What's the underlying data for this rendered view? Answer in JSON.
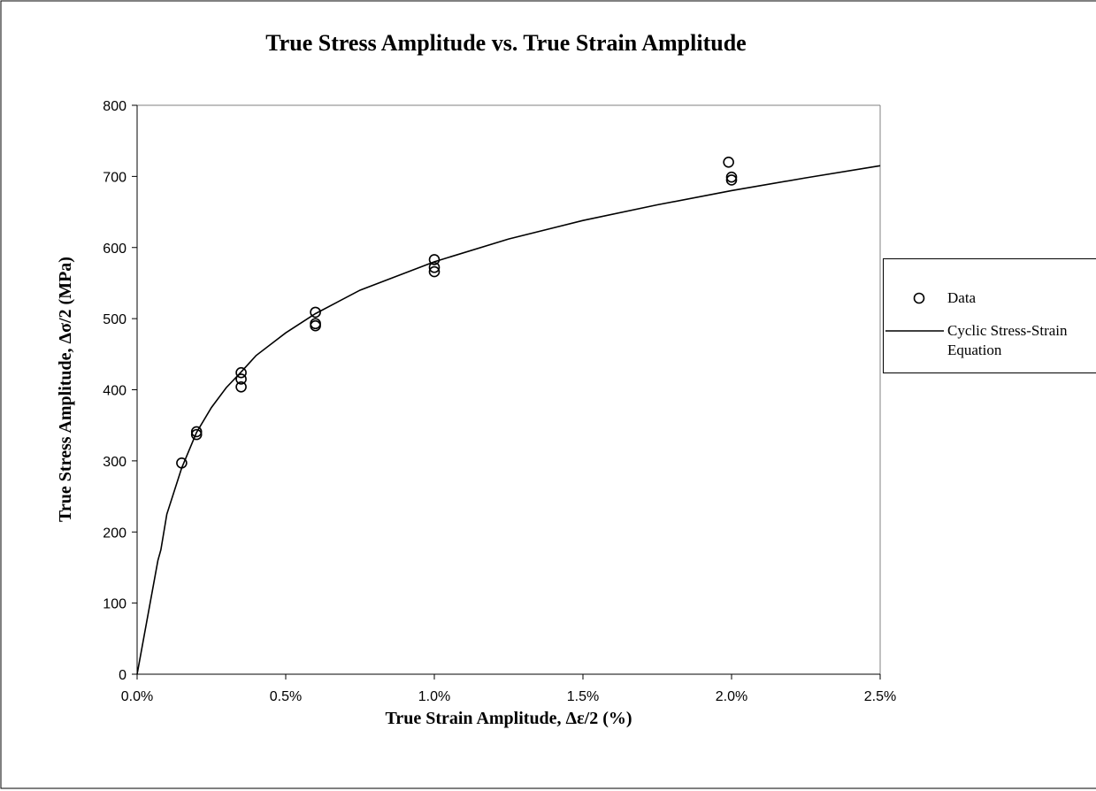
{
  "chart_data": {
    "type": "scatter",
    "title": "True Stress Amplitude vs. True Strain Amplitude",
    "x_label": "True Strain Amplitude, Δε/2  (%)",
    "y_label": "True Stress Amplitude, Δσ/2  (MPa)",
    "xlim": [
      0,
      2.5
    ],
    "ylim": [
      0,
      800
    ],
    "xticks": [
      {
        "value": 0,
        "label": "0.0%"
      },
      {
        "value": 0.5,
        "label": "0.5%"
      },
      {
        "value": 1,
        "label": "1.0%"
      },
      {
        "value": 1.5,
        "label": "1.5%"
      },
      {
        "value": 2,
        "label": "2.0%"
      },
      {
        "value": 2.5,
        "label": "2.5%"
      }
    ],
    "yticks": [
      0,
      100,
      200,
      300,
      400,
      500,
      600,
      700,
      800
    ],
    "grid": false,
    "legend": "right",
    "series": [
      {
        "name": "Data",
        "mode": "markers",
        "color": "#000000",
        "x": [
          0.15,
          0.2,
          0.2,
          0.35,
          0.35,
          0.35,
          0.6,
          0.6,
          0.6,
          1.0,
          1.0,
          1.0,
          1.99,
          2.0,
          2.0
        ],
        "values": [
          297,
          341,
          337,
          424,
          415,
          404,
          509,
          493,
          490,
          583,
          572,
          566,
          720,
          699,
          695
        ]
      },
      {
        "name": "Cyclic Stress-Strain Equation",
        "mode": "line",
        "color": "#000000",
        "x": [
          0,
          0.07,
          0.08,
          0.1,
          0.15,
          0.2,
          0.25,
          0.3,
          0.35,
          0.4,
          0.5,
          0.6,
          0.75,
          1.0,
          1.25,
          1.5,
          1.75,
          2.0,
          2.25,
          2.5
        ],
        "values": [
          0,
          160,
          175,
          225,
          290,
          340,
          375,
          403,
          425,
          448,
          480,
          507,
          540,
          580,
          612,
          638,
          660,
          680,
          698,
          715
        ]
      }
    ]
  }
}
